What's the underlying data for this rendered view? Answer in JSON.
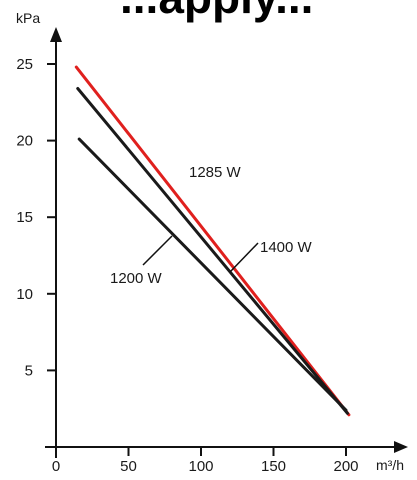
{
  "heading": "...apply...",
  "chart_data": {
    "type": "line",
    "title": "",
    "xlabel": "m³/h",
    "ylabel": "kPa",
    "xlim": [
      0,
      215
    ],
    "ylim": [
      0,
      27.5
    ],
    "x_ticks": [
      0,
      50,
      100,
      150,
      200
    ],
    "y_ticks": [
      5,
      10,
      15,
      20,
      25
    ],
    "grid": false,
    "series": [
      {
        "name": "1285 W",
        "color": "#e0201e",
        "points": [
          [
            14,
            24.8
          ],
          [
            202,
            2.1
          ]
        ]
      },
      {
        "name": "1400 W",
        "color": "#1a1a1a",
        "points": [
          [
            15,
            23.4
          ],
          [
            201,
            2.2
          ]
        ]
      },
      {
        "name": "1200 W",
        "color": "#1a1a1a",
        "points": [
          [
            16,
            20.1
          ],
          [
            200,
            2.4
          ]
        ]
      }
    ],
    "annotations": [
      {
        "text": "1285 W",
        "series": "1285 W"
      },
      {
        "text": "1400 W",
        "series": "1400 W"
      },
      {
        "text": "1200 W",
        "series": "1200 W"
      }
    ]
  }
}
